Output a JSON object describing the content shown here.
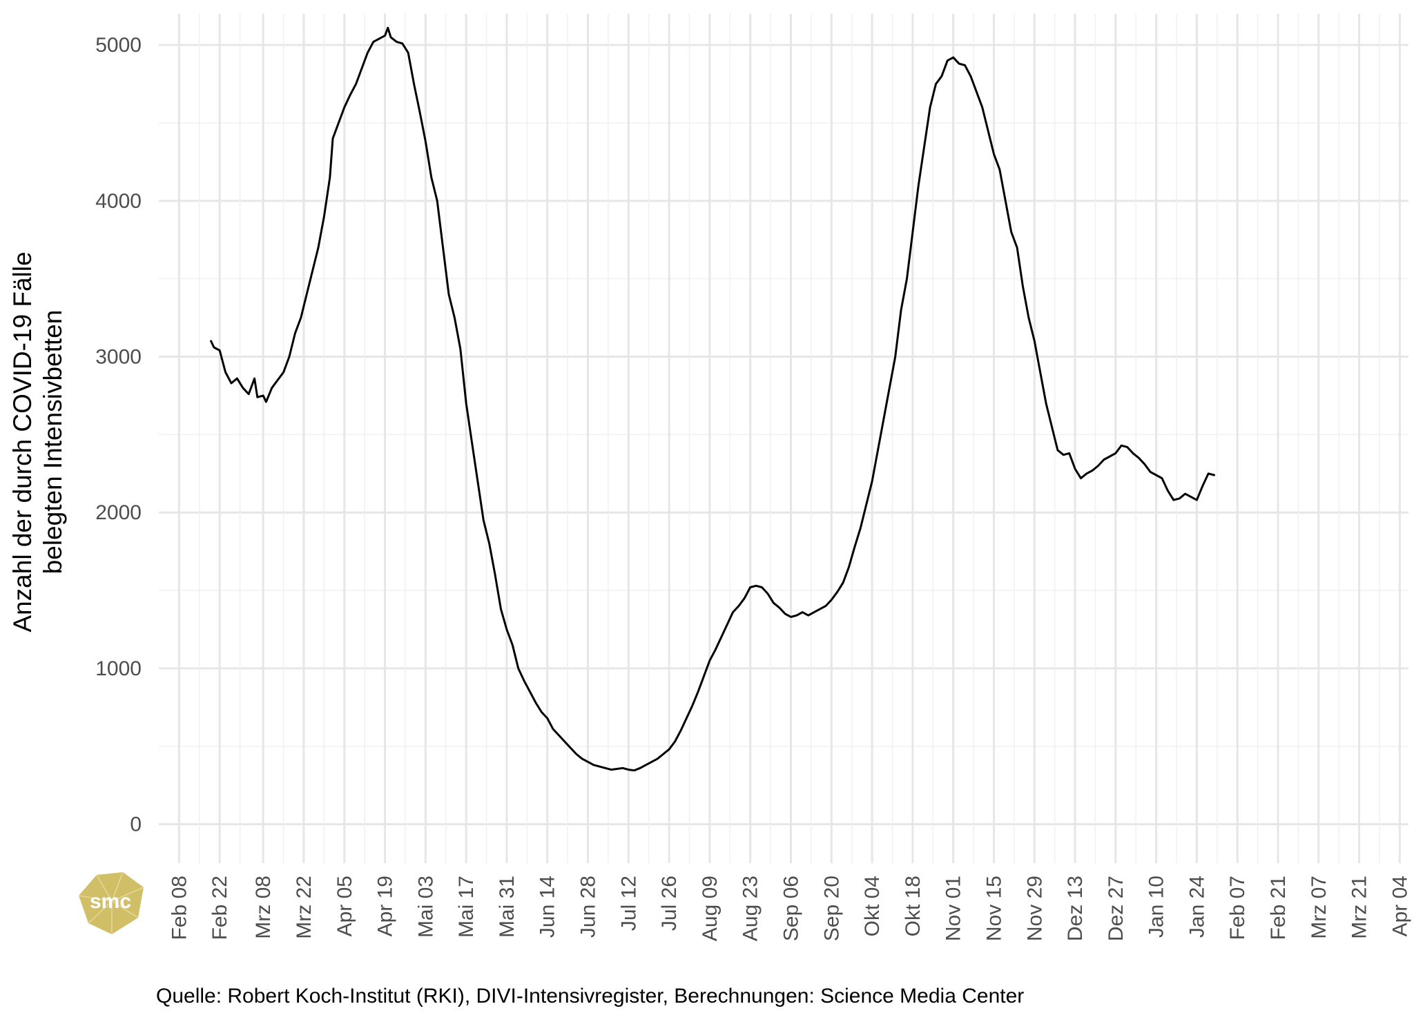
{
  "chart_data": {
    "type": "line",
    "ylabel": [
      "Anzahl der durch COVID-19 Fälle",
      "belegten Intensivbetten"
    ],
    "xlabel": "",
    "caption": "Quelle: Robert Koch-Institut (RKI), DIVI-Intensivregister, Berechnungen: Science Media Center",
    "ylim": [
      -250,
      5200
    ],
    "yticks": [
      0,
      1000,
      2000,
      3000,
      4000,
      5000
    ],
    "xlim": [
      "2020-02-01",
      "2021-04-07"
    ],
    "xticks": [
      {
        "date": "2020-02-08",
        "label": "Feb 08"
      },
      {
        "date": "2020-02-22",
        "label": "Feb 22"
      },
      {
        "date": "2020-03-08",
        "label": "Mrz 08"
      },
      {
        "date": "2020-03-22",
        "label": "Mrz 22"
      },
      {
        "date": "2020-04-05",
        "label": "Apr 05"
      },
      {
        "date": "2020-04-19",
        "label": "Apr 19"
      },
      {
        "date": "2020-05-03",
        "label": "Mai 03"
      },
      {
        "date": "2020-05-17",
        "label": "Mai 17"
      },
      {
        "date": "2020-05-31",
        "label": "Mai 31"
      },
      {
        "date": "2020-06-14",
        "label": "Jun 14"
      },
      {
        "date": "2020-06-28",
        "label": "Jun 28"
      },
      {
        "date": "2020-07-12",
        "label": "Jul 12"
      },
      {
        "date": "2020-07-26",
        "label": "Jul 26"
      },
      {
        "date": "2020-08-09",
        "label": "Aug 09"
      },
      {
        "date": "2020-08-23",
        "label": "Aug 23"
      },
      {
        "date": "2020-09-06",
        "label": "Sep 06"
      },
      {
        "date": "2020-09-20",
        "label": "Sep 20"
      },
      {
        "date": "2020-10-04",
        "label": "Okt 04"
      },
      {
        "date": "2020-10-18",
        "label": "Okt 18"
      },
      {
        "date": "2020-11-01",
        "label": "Nov 01"
      },
      {
        "date": "2020-11-15",
        "label": "Nov 15"
      },
      {
        "date": "2020-11-29",
        "label": "Nov 29"
      },
      {
        "date": "2020-12-13",
        "label": "Dez 13"
      },
      {
        "date": "2020-12-27",
        "label": "Dez 27"
      },
      {
        "date": "2021-01-10",
        "label": "Jan 10"
      },
      {
        "date": "2021-01-24",
        "label": "Jan 24"
      },
      {
        "date": "2021-02-07",
        "label": "Feb 07"
      },
      {
        "date": "2021-02-21",
        "label": "Feb 21"
      },
      {
        "date": "2021-03-07",
        "label": "Mrz 07"
      },
      {
        "date": "2021-03-21",
        "label": "Mrz 21"
      },
      {
        "date": "2021-04-04",
        "label": "Apr 04"
      }
    ],
    "grid": true,
    "legend": "none",
    "series": [
      {
        "color": "#000000",
        "points": [
          [
            "2020-02-19",
            3100
          ],
          [
            "2020-02-20",
            3060
          ],
          [
            "2020-02-22",
            3040
          ],
          [
            "2020-02-24",
            2900
          ],
          [
            "2020-02-26",
            2830
          ],
          [
            "2020-02-28",
            2860
          ],
          [
            "2020-03-01",
            2800
          ],
          [
            "2020-03-03",
            2760
          ],
          [
            "2020-03-05",
            2860
          ],
          [
            "2020-03-06",
            2740
          ],
          [
            "2020-03-08",
            2750
          ],
          [
            "2020-03-09",
            2710
          ],
          [
            "2020-03-11",
            2800
          ],
          [
            "2020-03-13",
            2850
          ],
          [
            "2020-03-15",
            2900
          ],
          [
            "2020-03-17",
            3000
          ],
          [
            "2020-03-19",
            3150
          ],
          [
            "2020-03-21",
            3250
          ],
          [
            "2020-03-23",
            3400
          ],
          [
            "2020-03-25",
            3550
          ],
          [
            "2020-03-27",
            3700
          ],
          [
            "2020-03-29",
            3900
          ],
          [
            "2020-03-31",
            4150
          ],
          [
            "2020-04-01",
            4400
          ],
          [
            "2020-04-03",
            4500
          ],
          [
            "2020-04-05",
            4600
          ],
          [
            "2020-04-07",
            4680
          ],
          [
            "2020-04-09",
            4750
          ],
          [
            "2020-04-11",
            4850
          ],
          [
            "2020-04-13",
            4950
          ],
          [
            "2020-04-15",
            5020
          ],
          [
            "2020-04-17",
            5040
          ],
          [
            "2020-04-19",
            5060
          ],
          [
            "2020-04-20",
            5110
          ],
          [
            "2020-04-21",
            5050
          ],
          [
            "2020-04-23",
            5020
          ],
          [
            "2020-04-25",
            5010
          ],
          [
            "2020-04-27",
            4950
          ],
          [
            "2020-04-29",
            4750
          ],
          [
            "2020-05-01",
            4570
          ],
          [
            "2020-05-03",
            4380
          ],
          [
            "2020-05-05",
            4150
          ],
          [
            "2020-05-07",
            4000
          ],
          [
            "2020-05-09",
            3700
          ],
          [
            "2020-05-11",
            3400
          ],
          [
            "2020-05-13",
            3250
          ],
          [
            "2020-05-15",
            3050
          ],
          [
            "2020-05-17",
            2700
          ],
          [
            "2020-05-19",
            2450
          ],
          [
            "2020-05-21",
            2200
          ],
          [
            "2020-05-23",
            1950
          ],
          [
            "2020-05-25",
            1800
          ],
          [
            "2020-05-27",
            1600
          ],
          [
            "2020-05-29",
            1380
          ],
          [
            "2020-05-31",
            1250
          ],
          [
            "2020-06-02",
            1150
          ],
          [
            "2020-06-04",
            1000
          ],
          [
            "2020-06-06",
            920
          ],
          [
            "2020-06-08",
            850
          ],
          [
            "2020-06-10",
            780
          ],
          [
            "2020-06-12",
            720
          ],
          [
            "2020-06-14",
            680
          ],
          [
            "2020-06-16",
            610
          ],
          [
            "2020-06-18",
            570
          ],
          [
            "2020-06-20",
            530
          ],
          [
            "2020-06-22",
            490
          ],
          [
            "2020-06-24",
            450
          ],
          [
            "2020-06-26",
            420
          ],
          [
            "2020-06-28",
            400
          ],
          [
            "2020-06-30",
            380
          ],
          [
            "2020-07-02",
            370
          ],
          [
            "2020-07-04",
            360
          ],
          [
            "2020-07-06",
            350
          ],
          [
            "2020-07-08",
            355
          ],
          [
            "2020-07-10",
            360
          ],
          [
            "2020-07-12",
            350
          ],
          [
            "2020-07-14",
            345
          ],
          [
            "2020-07-16",
            360
          ],
          [
            "2020-07-18",
            380
          ],
          [
            "2020-07-20",
            400
          ],
          [
            "2020-07-22",
            420
          ],
          [
            "2020-07-24",
            450
          ],
          [
            "2020-07-26",
            480
          ],
          [
            "2020-07-28",
            530
          ],
          [
            "2020-07-30",
            600
          ],
          [
            "2020-08-01",
            680
          ],
          [
            "2020-08-03",
            760
          ],
          [
            "2020-08-05",
            850
          ],
          [
            "2020-08-07",
            950
          ],
          [
            "2020-08-09",
            1050
          ],
          [
            "2020-08-11",
            1120
          ],
          [
            "2020-08-13",
            1200
          ],
          [
            "2020-08-15",
            1280
          ],
          [
            "2020-08-17",
            1360
          ],
          [
            "2020-08-19",
            1400
          ],
          [
            "2020-08-21",
            1450
          ],
          [
            "2020-08-23",
            1520
          ],
          [
            "2020-08-25",
            1530
          ],
          [
            "2020-08-27",
            1520
          ],
          [
            "2020-08-29",
            1480
          ],
          [
            "2020-08-31",
            1420
          ],
          [
            "2020-09-02",
            1390
          ],
          [
            "2020-09-04",
            1350
          ],
          [
            "2020-09-06",
            1330
          ],
          [
            "2020-09-08",
            1340
          ],
          [
            "2020-09-10",
            1360
          ],
          [
            "2020-09-12",
            1340
          ],
          [
            "2020-09-14",
            1360
          ],
          [
            "2020-09-16",
            1380
          ],
          [
            "2020-09-18",
            1400
          ],
          [
            "2020-09-20",
            1440
          ],
          [
            "2020-09-22",
            1490
          ],
          [
            "2020-09-24",
            1550
          ],
          [
            "2020-09-26",
            1650
          ],
          [
            "2020-09-28",
            1780
          ],
          [
            "2020-09-30",
            1900
          ],
          [
            "2020-10-02",
            2050
          ],
          [
            "2020-10-04",
            2200
          ],
          [
            "2020-10-06",
            2400
          ],
          [
            "2020-10-08",
            2600
          ],
          [
            "2020-10-10",
            2800
          ],
          [
            "2020-10-12",
            3000
          ],
          [
            "2020-10-14",
            3300
          ],
          [
            "2020-10-16",
            3500
          ],
          [
            "2020-10-18",
            3800
          ],
          [
            "2020-10-20",
            4100
          ],
          [
            "2020-10-22",
            4350
          ],
          [
            "2020-10-24",
            4600
          ],
          [
            "2020-10-26",
            4750
          ],
          [
            "2020-10-28",
            4800
          ],
          [
            "2020-10-30",
            4900
          ],
          [
            "2020-11-01",
            4920
          ],
          [
            "2020-11-03",
            4880
          ],
          [
            "2020-11-05",
            4870
          ],
          [
            "2020-11-07",
            4800
          ],
          [
            "2020-11-09",
            4700
          ],
          [
            "2020-11-11",
            4600
          ],
          [
            "2020-11-13",
            4450
          ],
          [
            "2020-11-15",
            4300
          ],
          [
            "2020-11-17",
            4200
          ],
          [
            "2020-11-19",
            4000
          ],
          [
            "2020-11-21",
            3800
          ],
          [
            "2020-11-23",
            3700
          ],
          [
            "2020-11-25",
            3450
          ],
          [
            "2020-11-27",
            3250
          ],
          [
            "2020-11-29",
            3100
          ],
          [
            "2020-12-01",
            2900
          ],
          [
            "2020-12-03",
            2700
          ],
          [
            "2020-12-05",
            2550
          ],
          [
            "2020-12-07",
            2400
          ],
          [
            "2020-12-09",
            2370
          ],
          [
            "2020-12-11",
            2380
          ],
          [
            "2020-12-13",
            2280
          ],
          [
            "2020-12-15",
            2220
          ],
          [
            "2020-12-17",
            2250
          ],
          [
            "2020-12-19",
            2270
          ],
          [
            "2020-12-21",
            2300
          ],
          [
            "2020-12-23",
            2340
          ],
          [
            "2020-12-25",
            2360
          ],
          [
            "2020-12-27",
            2380
          ],
          [
            "2020-12-29",
            2430
          ],
          [
            "2020-12-31",
            2420
          ],
          [
            "2021-01-02",
            2380
          ],
          [
            "2021-01-04",
            2350
          ],
          [
            "2021-01-06",
            2310
          ],
          [
            "2021-01-08",
            2260
          ],
          [
            "2021-01-10",
            2240
          ],
          [
            "2021-01-12",
            2220
          ],
          [
            "2021-01-14",
            2140
          ],
          [
            "2021-01-16",
            2080
          ],
          [
            "2021-01-18",
            2090
          ],
          [
            "2021-01-20",
            2120
          ],
          [
            "2021-01-22",
            2100
          ],
          [
            "2021-01-24",
            2080
          ],
          [
            "2021-01-26",
            2170
          ],
          [
            "2021-01-28",
            2250
          ],
          [
            "2021-01-30",
            2240
          ]
        ]
      }
    ]
  },
  "logo": {
    "text": "smc",
    "color": "#c9b44c"
  }
}
